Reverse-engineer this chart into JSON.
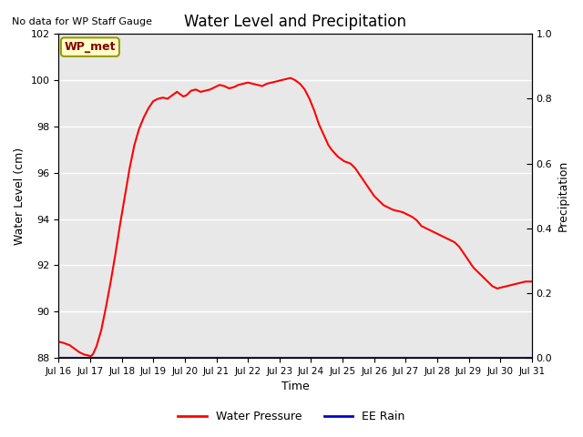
{
  "title": "Water Level and Precipitation",
  "top_left_text": "No data for WP Staff Gauge",
  "xlabel": "Time",
  "ylabel_left": "Water Level (cm)",
  "ylabel_right": "Precipitation",
  "legend_entries": [
    "Water Pressure",
    "EE Rain"
  ],
  "wp_met_label": "WP_met",
  "wp_met_bg": "#ffffcc",
  "wp_met_border": "#999900",
  "ylim_left": [
    88,
    102
  ],
  "ylim_right": [
    0.0,
    1.0
  ],
  "yticks_left": [
    88,
    90,
    92,
    94,
    96,
    98,
    100,
    102
  ],
  "yticks_right": [
    0.0,
    0.2,
    0.4,
    0.6,
    0.8,
    1.0
  ],
  "xtick_labels": [
    "Jul 16",
    "Jul 17",
    "Jul 18",
    "Jul 19",
    "Jul 20",
    "Jul 21",
    "Jul 22",
    "Jul 23",
    "Jul 24",
    "Jul 25",
    "Jul 26",
    "Jul 27",
    "Jul 28",
    "Jul 29",
    "Jul 30",
    "Jul 31"
  ],
  "background_color": "#e8e8e8",
  "water_pressure_color": "#ff0000",
  "ee_rain_color": "#0000cc",
  "detailed_x": [
    0.0,
    0.15,
    0.35,
    0.5,
    0.65,
    0.8,
    0.95,
    1.0,
    1.05,
    1.1,
    1.2,
    1.35,
    1.5,
    1.65,
    1.8,
    1.95,
    2.1,
    2.25,
    2.4,
    2.55,
    2.7,
    2.85,
    3.0,
    3.15,
    3.3,
    3.45,
    3.55,
    3.65,
    3.75,
    3.85,
    3.95,
    4.05,
    4.2,
    4.35,
    4.5,
    4.65,
    4.8,
    4.95,
    5.1,
    5.25,
    5.4,
    5.55,
    5.7,
    5.85,
    6.0,
    6.15,
    6.3,
    6.45,
    6.6,
    6.75,
    6.9,
    7.05,
    7.2,
    7.35,
    7.5,
    7.65,
    7.8,
    7.95,
    8.1,
    8.25,
    8.35,
    8.45,
    8.55,
    8.65,
    8.75,
    8.85,
    8.95,
    9.05,
    9.15,
    9.25,
    9.4,
    9.55,
    9.7,
    9.85,
    10.0,
    10.15,
    10.3,
    10.45,
    10.6,
    10.75,
    10.9,
    11.05,
    11.2,
    11.35,
    11.5,
    11.65,
    11.8,
    11.95,
    12.1,
    12.25,
    12.4,
    12.55,
    12.7,
    12.85,
    13.0,
    13.15,
    13.3,
    13.45,
    13.6,
    13.75,
    13.9,
    14.05,
    14.2,
    14.35,
    14.5,
    14.65,
    14.8,
    14.95,
    15.0
  ],
  "detailed_y": [
    88.7,
    88.65,
    88.55,
    88.4,
    88.25,
    88.15,
    88.1,
    88.08,
    88.1,
    88.2,
    88.5,
    89.2,
    90.2,
    91.3,
    92.5,
    93.8,
    95.0,
    96.2,
    97.2,
    97.9,
    98.4,
    98.8,
    99.1,
    99.2,
    99.25,
    99.2,
    99.3,
    99.4,
    99.5,
    99.4,
    99.3,
    99.35,
    99.55,
    99.6,
    99.5,
    99.55,
    99.6,
    99.7,
    99.8,
    99.75,
    99.65,
    99.7,
    99.8,
    99.85,
    99.9,
    99.85,
    99.8,
    99.75,
    99.85,
    99.9,
    99.95,
    100.0,
    100.05,
    100.1,
    100.0,
    99.85,
    99.6,
    99.2,
    98.7,
    98.1,
    97.8,
    97.5,
    97.2,
    97.0,
    96.85,
    96.7,
    96.6,
    96.5,
    96.45,
    96.4,
    96.2,
    95.9,
    95.6,
    95.3,
    95.0,
    94.8,
    94.6,
    94.5,
    94.4,
    94.35,
    94.3,
    94.2,
    94.1,
    93.95,
    93.7,
    93.6,
    93.5,
    93.4,
    93.3,
    93.2,
    93.1,
    93.0,
    92.8,
    92.5,
    92.2,
    91.9,
    91.7,
    91.5,
    91.3,
    91.1,
    91.0,
    91.05,
    91.1,
    91.15,
    91.2,
    91.25,
    91.3,
    91.3,
    91.3
  ]
}
